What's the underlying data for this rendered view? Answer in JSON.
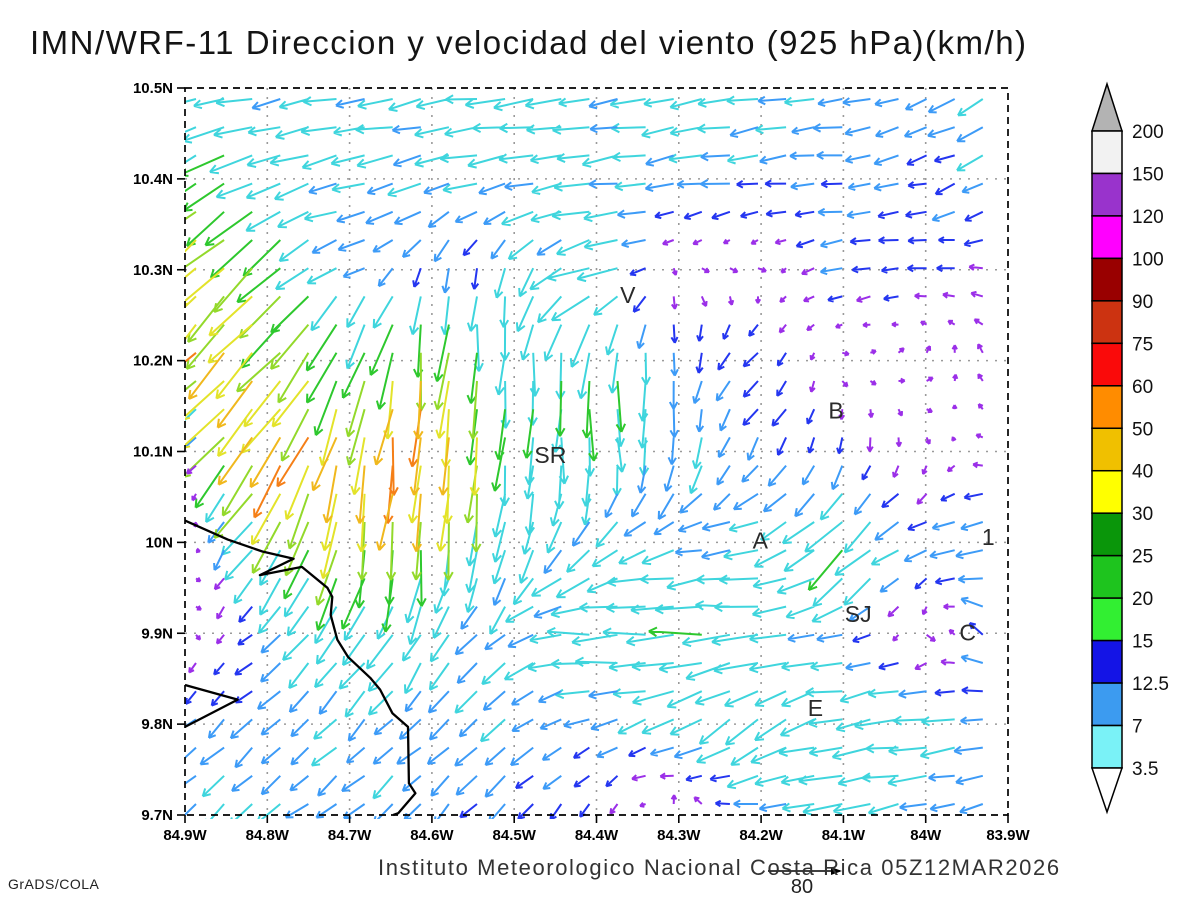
{
  "title": "IMN/WRF-11 Direccion y velocidad del viento (925 hPa)(km/h)",
  "footer": {
    "institution": "Instituto Meteorologico Nacional Costa Rica 05Z12MAR2026",
    "credit": "GrADS/COLA",
    "reference_vector": {
      "value": "80"
    }
  },
  "chart_data": {
    "type": "vector-field-map",
    "title": "IMN/WRF-11 Direccion y velocidad del viento (925 hPa)(km/h)",
    "x_axis": {
      "ticks": [
        "84.9W",
        "84.8W",
        "84.7W",
        "84.6W",
        "84.5W",
        "84.4W",
        "84.3W",
        "84.2W",
        "84.1W",
        "84W",
        "83.9W"
      ],
      "lons": [
        84.9,
        84.8,
        84.7,
        84.6,
        84.5,
        84.4,
        84.3,
        84.2,
        84.1,
        84.0,
        83.9
      ],
      "range": [
        84.9,
        83.9
      ]
    },
    "y_axis": {
      "ticks": [
        "10.5N",
        "10.4N",
        "10.3N",
        "10.2N",
        "10.1N",
        "10N",
        "9.9N",
        "9.8N",
        "9.7N"
      ],
      "lats": [
        10.5,
        10.4,
        10.3,
        10.2,
        10.1,
        10.0,
        9.9,
        9.8,
        9.7
      ],
      "range": [
        10.5,
        9.7
      ]
    },
    "grid": {
      "visible": true,
      "style": "dotted"
    },
    "colorbar": {
      "boundary_labels": [
        "200",
        "150",
        "120",
        "100",
        "90",
        "75",
        "60",
        "50",
        "40",
        "30",
        "25",
        "20",
        "15",
        "12.5",
        "7",
        "3.5"
      ],
      "segment_colors": [
        "#f2f2f2",
        "#9933cc",
        "#ff00ff",
        "#990000",
        "#cc3311",
        "#fa0a0a",
        "#ff8c00",
        "#f0c000",
        "#ffff00",
        "#0a960a",
        "#1ec41e",
        "#32ef32",
        "#1414e6",
        "#3c9bf0",
        "#7af2f7"
      ],
      "top_cap_color": "#b3b3b3",
      "bottom_cap_color": "#ffffff"
    },
    "speed_colors": {
      "thresholds": [
        6,
        10,
        14,
        24,
        31,
        38,
        46,
        54,
        63
      ],
      "colors": [
        "#9b2fe8",
        "#2436f0",
        "#3d9bf7",
        "#3fd5dd",
        "#2ec82e",
        "#93d92b",
        "#e3e32a",
        "#f0b81d",
        "#f57f17",
        "#ee2c1f"
      ]
    },
    "wind_grid": {
      "lons": [
        84.9,
        84.8,
        84.7,
        84.6,
        84.5,
        84.4,
        84.3,
        84.2,
        84.1,
        84.0,
        83.9
      ],
      "lats": [
        10.5,
        10.4,
        10.3,
        10.2,
        10.1,
        10.0,
        9.9,
        9.8,
        9.7
      ],
      "dir_toward_deg": [
        [
          258,
          260,
          258,
          260,
          262,
          258,
          260,
          262,
          258,
          245,
          238
        ],
        [
          240,
          245,
          255,
          258,
          260,
          262,
          260,
          262,
          265,
          255,
          240
        ],
        [
          225,
          228,
          250,
          195,
          188,
          255,
          120,
          100,
          255,
          265,
          295
        ],
        [
          222,
          225,
          200,
          185,
          185,
          180,
          185,
          225,
          90,
          45,
          320
        ],
        [
          30,
          218,
          195,
          180,
          185,
          175,
          190,
          210,
          200,
          160,
          300
        ],
        [
          45,
          215,
          190,
          185,
          195,
          230,
          255,
          260,
          225,
          245,
          265
        ],
        [
          100,
          235,
          215,
          210,
          235,
          268,
          268,
          265,
          255,
          120,
          310
        ],
        [
          230,
          225,
          225,
          230,
          235,
          255,
          245,
          235,
          262,
          263,
          262
        ],
        [
          225,
          230,
          235,
          220,
          225,
          200,
          20,
          270,
          258,
          255,
          260
        ]
      ],
      "speed_kmh": [
        [
          16,
          16,
          15,
          16,
          17,
          16,
          15,
          14,
          13,
          12,
          13
        ],
        [
          26,
          20,
          16,
          15,
          16,
          16,
          14,
          12,
          10,
          10,
          13
        ],
        [
          44,
          34,
          10,
          10,
          13,
          24,
          3,
          3,
          10,
          8,
          5
        ],
        [
          48,
          42,
          30,
          38,
          24,
          26,
          12,
          10,
          3,
          3,
          4
        ],
        [
          3,
          58,
          50,
          58,
          20,
          20,
          14,
          12,
          8,
          3,
          4
        ],
        [
          4,
          24,
          32,
          28,
          18,
          15,
          14,
          15,
          26,
          12,
          14
        ],
        [
          3,
          10,
          20,
          16,
          12,
          24,
          24,
          20,
          12,
          4,
          14
        ],
        [
          12,
          12,
          13,
          12,
          14,
          10,
          15,
          22,
          18,
          20,
          9
        ],
        [
          12,
          14,
          12,
          12,
          10,
          8,
          6,
          10,
          20,
          14,
          9
        ]
      ]
    },
    "coastline": {
      "main": [
        [
          84.9,
          10.024
        ],
        [
          84.848,
          10.003
        ],
        [
          84.806,
          9.99
        ],
        [
          84.768,
          9.982
        ],
        [
          84.809,
          9.964
        ],
        [
          84.758,
          9.973
        ],
        [
          84.727,
          9.95
        ],
        [
          84.721,
          9.94
        ],
        [
          84.723,
          9.92
        ],
        [
          84.715,
          9.893
        ],
        [
          84.702,
          9.874
        ],
        [
          84.675,
          9.851
        ],
        [
          84.663,
          9.838
        ],
        [
          84.648,
          9.812
        ],
        [
          84.629,
          9.797
        ],
        [
          84.628,
          9.735
        ],
        [
          84.62,
          9.724
        ],
        [
          84.641,
          9.702
        ],
        [
          84.647,
          9.7
        ]
      ],
      "spur": [
        [
          84.9,
          9.843
        ],
        [
          84.836,
          9.827
        ],
        [
          84.9,
          9.797
        ]
      ]
    },
    "city_labels": [
      {
        "text": "V",
        "lon": 84.362,
        "lat": 10.272
      },
      {
        "text": "SR",
        "lon": 84.456,
        "lat": 10.096
      },
      {
        "text": "B",
        "lon": 84.109,
        "lat": 10.145
      },
      {
        "text": "A",
        "lon": 84.201,
        "lat": 10.002
      },
      {
        "text": "1",
        "lon": 83.924,
        "lat": 10.006
      },
      {
        "text": "SJ",
        "lon": 84.082,
        "lat": 9.921
      },
      {
        "text": "C",
        "lon": 83.949,
        "lat": 9.901
      },
      {
        "text": "E",
        "lon": 84.134,
        "lat": 9.818
      }
    ]
  }
}
